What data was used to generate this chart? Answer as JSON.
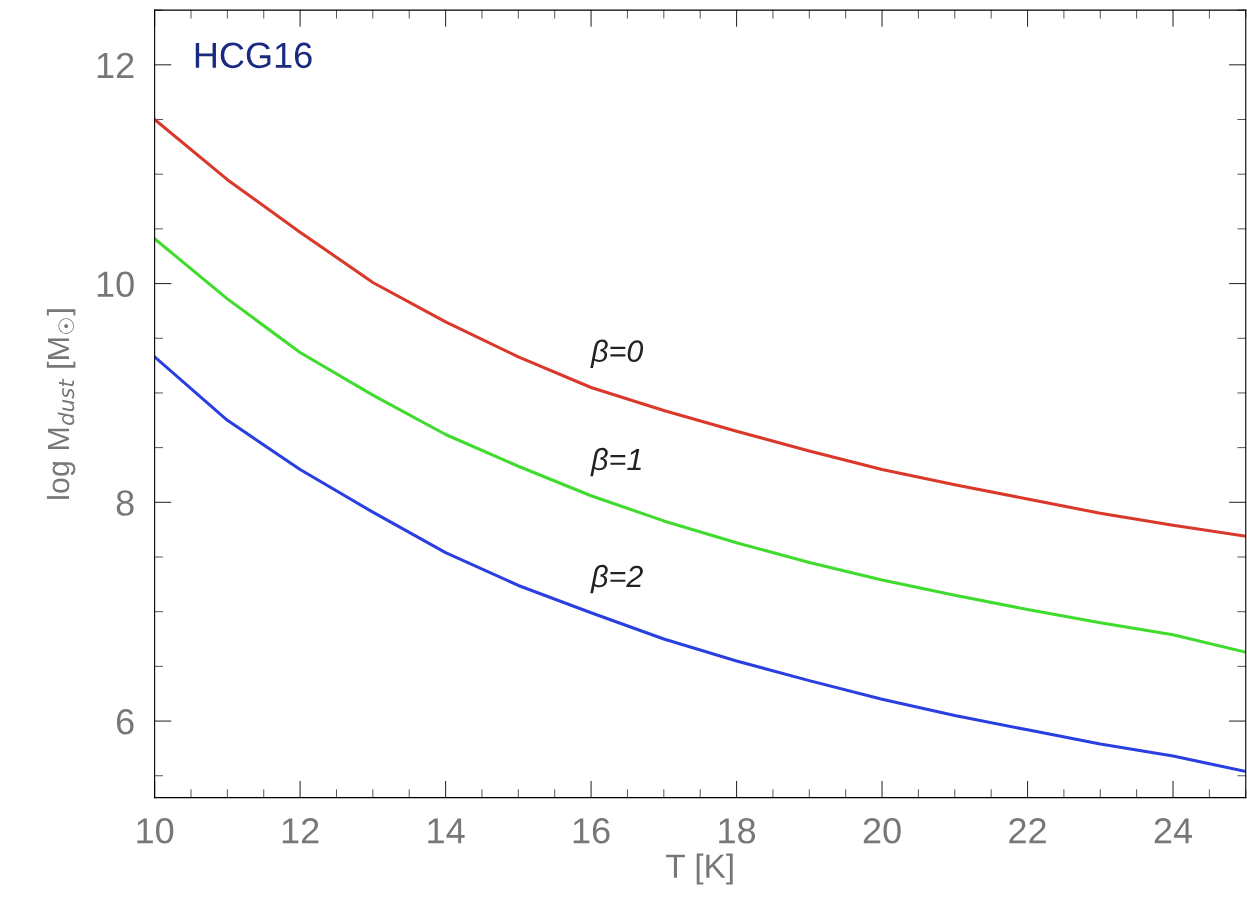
{
  "chart_data": {
    "type": "line",
    "title": "HCG16",
    "xlabel": "T [K]",
    "ylabel": "log M$_{dust}$ [M$_{☉}$]",
    "x": [
      10,
      11,
      12,
      13,
      14,
      15,
      16,
      17,
      18,
      19,
      20,
      21,
      22,
      23,
      24,
      25
    ],
    "series": [
      {
        "name": "β=0",
        "color": "#d9382a",
        "values": [
          11.5,
          10.95,
          10.47,
          10.01,
          9.65,
          9.33,
          9.05,
          8.84,
          8.65,
          8.47,
          8.3,
          8.16,
          8.03,
          7.9,
          7.79,
          7.69
        ]
      },
      {
        "name": "β=1",
        "color": "#3fdc2f",
        "values": [
          10.41,
          9.86,
          9.37,
          8.98,
          8.62,
          8.33,
          8.06,
          7.83,
          7.63,
          7.45,
          7.29,
          7.15,
          7.02,
          6.9,
          6.79,
          6.63
        ]
      },
      {
        "name": "β=2",
        "color": "#2a3fe0",
        "values": [
          9.33,
          8.75,
          8.3,
          7.91,
          7.54,
          7.24,
          6.99,
          6.75,
          6.55,
          6.37,
          6.2,
          6.05,
          5.92,
          5.79,
          5.68,
          5.54
        ]
      }
    ],
    "xlim": [
      10,
      25
    ],
    "xticks": [
      10,
      12,
      14,
      16,
      18,
      20,
      22,
      24
    ],
    "ylim": [
      5.3,
      12.5
    ],
    "yticks": [
      6,
      8,
      10,
      12
    ],
    "grid": false,
    "legend": false,
    "marker": "none",
    "line_style": "solid"
  }
}
